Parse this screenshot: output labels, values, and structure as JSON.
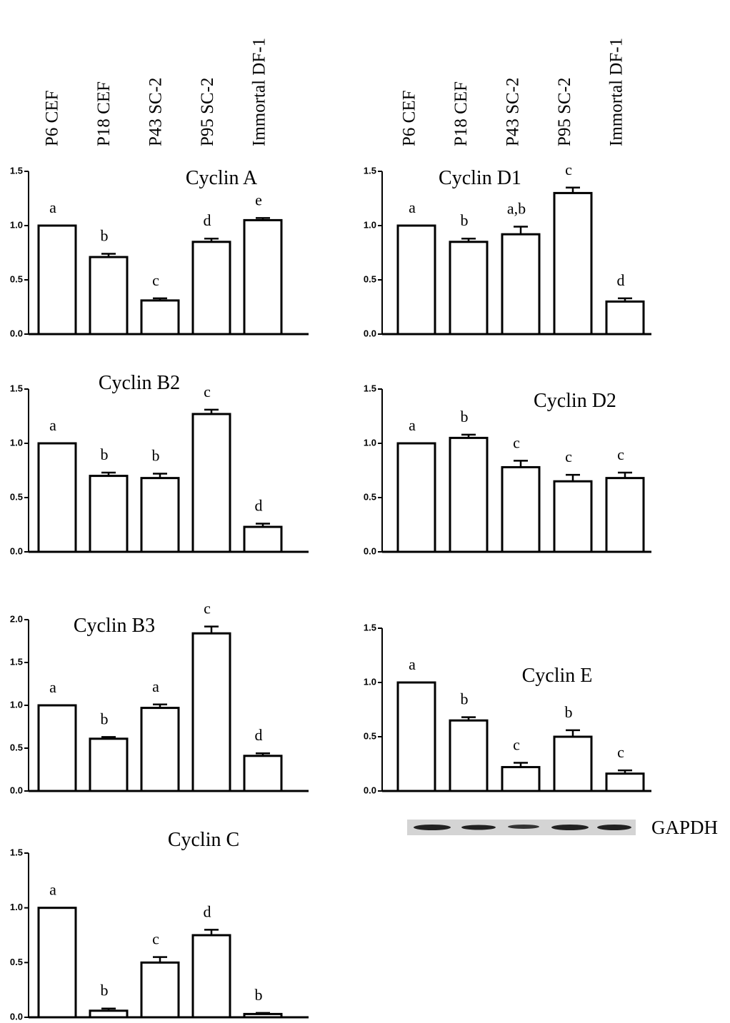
{
  "chart_data": [
    {
      "type": "bar",
      "title": "Cyclin A",
      "categories": [
        "P6 CEF",
        "P18 CEF",
        "P43 SC-2",
        "P95 SC-2",
        "Immortal DF-1"
      ],
      "values": [
        1.0,
        0.71,
        0.31,
        0.85,
        1.05
      ],
      "errors": [
        0,
        0.03,
        0.02,
        0.03,
        0.02
      ],
      "annotations": [
        "a",
        "b",
        "c",
        "d",
        "e"
      ],
      "ylim": [
        0,
        1.5
      ],
      "yticks": [
        {
          "value": 0,
          "label": "0.0"
        },
        0.5,
        {
          "value": 1,
          "label": "1.0"
        },
        1.5
      ]
    },
    {
      "type": "bar",
      "title": "Cyclin D1",
      "categories": [
        "P6 CEF",
        "P18 CEF",
        "P43 SC-2",
        "P95 SC-2",
        "Immortal DF-1"
      ],
      "values": [
        1.0,
        0.85,
        0.92,
        1.3,
        0.3
      ],
      "errors": [
        0,
        0.03,
        0.07,
        0.05,
        0.03
      ],
      "annotations": [
        "a",
        "b",
        "a,b",
        "c",
        "d"
      ],
      "ylim": [
        0,
        1.5
      ],
      "yticks": [
        {
          "value": 0,
          "label": "0.0"
        },
        0.5,
        {
          "value": 1,
          "label": "1.0"
        },
        1.5
      ]
    },
    {
      "type": "bar",
      "title": "Cyclin B2",
      "categories": [
        null,
        null,
        null,
        null,
        null
      ],
      "values": [
        1.0,
        0.7,
        0.68,
        1.27,
        0.23
      ],
      "errors": [
        0,
        0.03,
        0.04,
        0.04,
        0.03
      ],
      "annotations": [
        "a",
        "b",
        "b",
        "c",
        "d"
      ],
      "ylim": [
        0,
        1.5
      ],
      "yticks": [
        {
          "value": 0,
          "label": "0.0"
        },
        0.5,
        {
          "value": 1,
          "label": "1.0"
        },
        1.5
      ]
    },
    {
      "type": "bar",
      "title": "Cyclin D2",
      "categories": [
        null,
        null,
        null,
        null,
        null
      ],
      "values": [
        1.0,
        1.05,
        0.78,
        0.65,
        0.68
      ],
      "errors": [
        0,
        0.03,
        0.06,
        0.06,
        0.05
      ],
      "annotations": [
        "a",
        "b",
        "c",
        "c",
        "c"
      ],
      "ylim": [
        0,
        1.5
      ],
      "yticks": [
        {
          "value": 0,
          "label": "0.0"
        },
        0.5,
        {
          "value": 1,
          "label": "1.0"
        },
        1.5
      ]
    },
    {
      "type": "bar",
      "title": "Cyclin B3",
      "categories": [
        null,
        null,
        null,
        null,
        null
      ],
      "values": [
        1.0,
        0.61,
        0.97,
        1.84,
        0.41
      ],
      "errors": [
        0,
        0.02,
        0.04,
        0.08,
        0.03
      ],
      "annotations": [
        "a",
        "b",
        "a",
        "c",
        "d"
      ],
      "ylim": [
        0,
        2
      ],
      "yticks": [
        {
          "value": 0,
          "label": "0.0"
        },
        0.5,
        {
          "value": 1,
          "label": "1.0"
        },
        1.5,
        {
          "value": 2,
          "label": "2.0"
        }
      ]
    },
    {
      "type": "bar",
      "title": "Cyclin E",
      "categories": [
        null,
        null,
        null,
        null,
        null
      ],
      "values": [
        1.0,
        0.65,
        0.22,
        0.5,
        0.16
      ],
      "errors": [
        0,
        0.03,
        0.04,
        0.06,
        0.03
      ],
      "annotations": [
        "a",
        "b",
        "c",
        "b",
        "c"
      ],
      "ylim": [
        0,
        1.5
      ],
      "yticks": [
        {
          "value": 0,
          "label": "0.0"
        },
        0.5,
        {
          "value": 1,
          "label": "1.0"
        },
        1.5
      ]
    },
    {
      "type": "bar",
      "title": "Cyclin C",
      "categories": [
        null,
        null,
        null,
        null,
        null
      ],
      "values": [
        1.0,
        0.06,
        0.5,
        0.75,
        0.03
      ],
      "errors": [
        0,
        0.02,
        0.05,
        0.05,
        0.01
      ],
      "annotations": [
        "a",
        "b",
        "c",
        "d",
        "b"
      ],
      "ylim": [
        0,
        1.5
      ],
      "yticks": [
        {
          "value": 0,
          "label": "0.0"
        },
        0.5,
        {
          "value": 1,
          "label": "1.0"
        },
        1.5
      ]
    }
  ],
  "blot_label": "GAPDH"
}
